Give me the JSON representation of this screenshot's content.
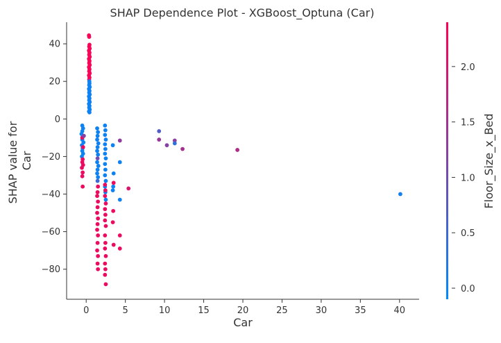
{
  "chart_data": {
    "type": "scatter",
    "title": "SHAP Dependence Plot - XGBoost_Optuna (Car)",
    "xlabel": "Car",
    "ylabel": "SHAP value for\nCar",
    "xlim": [
      -2.5,
      42.5
    ],
    "ylim": [
      -96,
      51.5
    ],
    "xticks": [
      0,
      5,
      10,
      15,
      20,
      25,
      30,
      35,
      40
    ],
    "yticks": [
      40,
      20,
      0,
      -20,
      -40,
      -60,
      -80
    ],
    "grid": false,
    "colorbar": {
      "label": "Floor_Size_x_Bed",
      "range": [
        -0.1,
        2.4
      ],
      "ticks": [
        2.0,
        1.5,
        1.0,
        0.5,
        0.0
      ],
      "colors": [
        "#008afb",
        "#ff0052"
      ]
    },
    "series": [
      {
        "points": [
          [
            0.35,
            44.5,
            2.3
          ],
          [
            0.38,
            43.7,
            2.3
          ],
          [
            0.42,
            39.5,
            2.3
          ],
          [
            0.38,
            38.5,
            2.3
          ],
          [
            0.45,
            37.5,
            2.3
          ],
          [
            0.35,
            36.4,
            2.3
          ],
          [
            0.42,
            35.3,
            2.3
          ],
          [
            0.38,
            34.2,
            2.3
          ],
          [
            0.45,
            33.1,
            2.3
          ],
          [
            0.35,
            32,
            2.3
          ],
          [
            0.42,
            30.9,
            2.3
          ],
          [
            0.38,
            29.8,
            2.3
          ],
          [
            0.45,
            28.7,
            2.3
          ],
          [
            0.35,
            27.6,
            2.3
          ],
          [
            0.42,
            26.5,
            2.3
          ],
          [
            0.38,
            25.4,
            2.3
          ],
          [
            0.45,
            24.3,
            2.3
          ],
          [
            0.35,
            23.2,
            2.3
          ],
          [
            0.42,
            22.1,
            2.3
          ],
          [
            0.38,
            21,
            2.3
          ],
          [
            0.4,
            20,
            0.05
          ],
          [
            0.42,
            19,
            0.05
          ],
          [
            0.38,
            18,
            0.05
          ],
          [
            0.45,
            17,
            0.05
          ],
          [
            0.35,
            16,
            0.05
          ],
          [
            0.42,
            15,
            0.05
          ],
          [
            0.38,
            14,
            0.05
          ],
          [
            0.45,
            13,
            0.05
          ],
          [
            0.35,
            12,
            0.05
          ],
          [
            0.42,
            11,
            0.05
          ],
          [
            0.38,
            10,
            0.05
          ],
          [
            0.45,
            9,
            0.05
          ],
          [
            0.35,
            8,
            0.05
          ],
          [
            0.42,
            7,
            0.05
          ],
          [
            0.38,
            6,
            0.05
          ],
          [
            0.45,
            5,
            0.05
          ],
          [
            0.35,
            4,
            0.05
          ],
          [
            0.42,
            3.5,
            0.05
          ],
          [
            -0.5,
            -3.5,
            0.05
          ],
          [
            -0.4,
            -5,
            0.05
          ],
          [
            -0.5,
            -6.5,
            0.05
          ],
          [
            -0.6,
            -8,
            0.05
          ],
          [
            -0.45,
            -9.5,
            0.05
          ],
          [
            -0.5,
            -11,
            0.05
          ],
          [
            -0.35,
            -12.5,
            0.05
          ],
          [
            -0.55,
            -14,
            0.05
          ],
          [
            -0.45,
            -15.5,
            0.05
          ],
          [
            -0.5,
            -17,
            0.05
          ],
          [
            -0.4,
            -18.5,
            0.05
          ],
          [
            -0.55,
            -20,
            0.05
          ],
          [
            -0.45,
            -21.5,
            2.2
          ],
          [
            -0.5,
            -23,
            2.2
          ],
          [
            -0.4,
            -24.5,
            2.2
          ],
          [
            -0.55,
            -26,
            2.2
          ],
          [
            -0.45,
            -28.5,
            2.2
          ],
          [
            -0.5,
            -30.5,
            2.2
          ],
          [
            -0.45,
            -36,
            2.2
          ],
          [
            -0.5,
            -10,
            2.2
          ],
          [
            -0.4,
            -15,
            2.2
          ],
          [
            -0.3,
            -9,
            1.2
          ],
          [
            1.4,
            -5,
            0.05
          ],
          [
            1.5,
            -7,
            0.05
          ],
          [
            1.45,
            -9,
            0.05
          ],
          [
            1.4,
            -11,
            0.05
          ],
          [
            1.55,
            -13,
            0.05
          ],
          [
            1.45,
            -15,
            0.05
          ],
          [
            1.4,
            -17,
            0.05
          ],
          [
            1.5,
            -19,
            0.05
          ],
          [
            1.45,
            -21,
            1.0
          ],
          [
            1.4,
            -23,
            0.05
          ],
          [
            1.55,
            -25,
            0.05
          ],
          [
            1.45,
            -27,
            0.05
          ],
          [
            1.4,
            -29,
            0.05
          ],
          [
            1.5,
            -31,
            0.05
          ],
          [
            1.45,
            -33,
            0.5
          ],
          [
            1.5,
            -36,
            2.2
          ],
          [
            1.45,
            -39,
            2.2
          ],
          [
            1.4,
            -41,
            2.2
          ],
          [
            1.5,
            -44,
            2.2
          ],
          [
            1.45,
            -47,
            2.2
          ],
          [
            1.4,
            -50,
            2.2
          ],
          [
            1.5,
            -53,
            2.2
          ],
          [
            1.45,
            -56,
            2.2
          ],
          [
            1.4,
            -59,
            2.2
          ],
          [
            1.5,
            -62,
            2.2
          ],
          [
            1.45,
            -66,
            2.2
          ],
          [
            1.4,
            -70,
            2.2
          ],
          [
            1.5,
            -73,
            2.2
          ],
          [
            1.45,
            -77,
            2.2
          ],
          [
            1.5,
            -80,
            2.2
          ],
          [
            2.4,
            -3.5,
            0.05
          ],
          [
            2.45,
            -6,
            0.05
          ],
          [
            2.4,
            -8.5,
            0.05
          ],
          [
            2.5,
            -11,
            0.05
          ],
          [
            2.4,
            -13.5,
            0.05
          ],
          [
            2.45,
            -16,
            0.05
          ],
          [
            2.4,
            -18.5,
            0.05
          ],
          [
            2.5,
            -21,
            0.05
          ],
          [
            2.4,
            -24,
            0.05
          ],
          [
            2.45,
            -27,
            0.05
          ],
          [
            2.4,
            -30,
            0.05
          ],
          [
            2.5,
            -33,
            0.05
          ],
          [
            2.4,
            -36,
            0.05
          ],
          [
            2.45,
            -39,
            0.05
          ],
          [
            2.5,
            -43,
            0.05
          ],
          [
            2.4,
            -35,
            2.2
          ],
          [
            2.45,
            -38,
            2.2
          ],
          [
            2.4,
            -41,
            2.2
          ],
          [
            2.5,
            -45,
            2.2
          ],
          [
            2.4,
            -48,
            2.2
          ],
          [
            2.45,
            -51,
            2.2
          ],
          [
            2.4,
            -54,
            2.2
          ],
          [
            2.5,
            -57,
            2.2
          ],
          [
            2.4,
            -62,
            2.2
          ],
          [
            2.45,
            -66,
            2.2
          ],
          [
            2.4,
            -69,
            2.2
          ],
          [
            2.5,
            -73,
            2.2
          ],
          [
            2.4,
            -77,
            2.2
          ],
          [
            2.45,
            -80,
            2.2
          ],
          [
            2.4,
            -83,
            2.2
          ],
          [
            2.5,
            -88,
            2.2
          ],
          [
            3.4,
            -14,
            0.05
          ],
          [
            3.5,
            -29,
            0.05
          ],
          [
            3.45,
            -36,
            0.05
          ],
          [
            3.4,
            -38,
            0.05
          ],
          [
            3.5,
            -34,
            2.2
          ],
          [
            3.45,
            -49,
            2.2
          ],
          [
            3.4,
            -55,
            2.2
          ],
          [
            3.5,
            -67,
            2.2
          ],
          [
            4.3,
            -11.5,
            1.3
          ],
          [
            4.3,
            -23,
            0.05
          ],
          [
            4.3,
            -43,
            0.05
          ],
          [
            4.3,
            -62,
            2.2
          ],
          [
            4.3,
            -69,
            2.2
          ],
          [
            5.4,
            -37,
            2.0
          ],
          [
            9.3,
            -6.5,
            0.7
          ],
          [
            9.3,
            -11,
            1.4
          ],
          [
            10.3,
            -14,
            1.2
          ],
          [
            11.3,
            -11.5,
            1.3
          ],
          [
            11.3,
            -13,
            0.35
          ],
          [
            12.3,
            -16,
            1.5
          ],
          [
            19.3,
            -16.5,
            1.6
          ],
          [
            40.1,
            -40,
            0.1
          ]
        ]
      }
    ]
  }
}
